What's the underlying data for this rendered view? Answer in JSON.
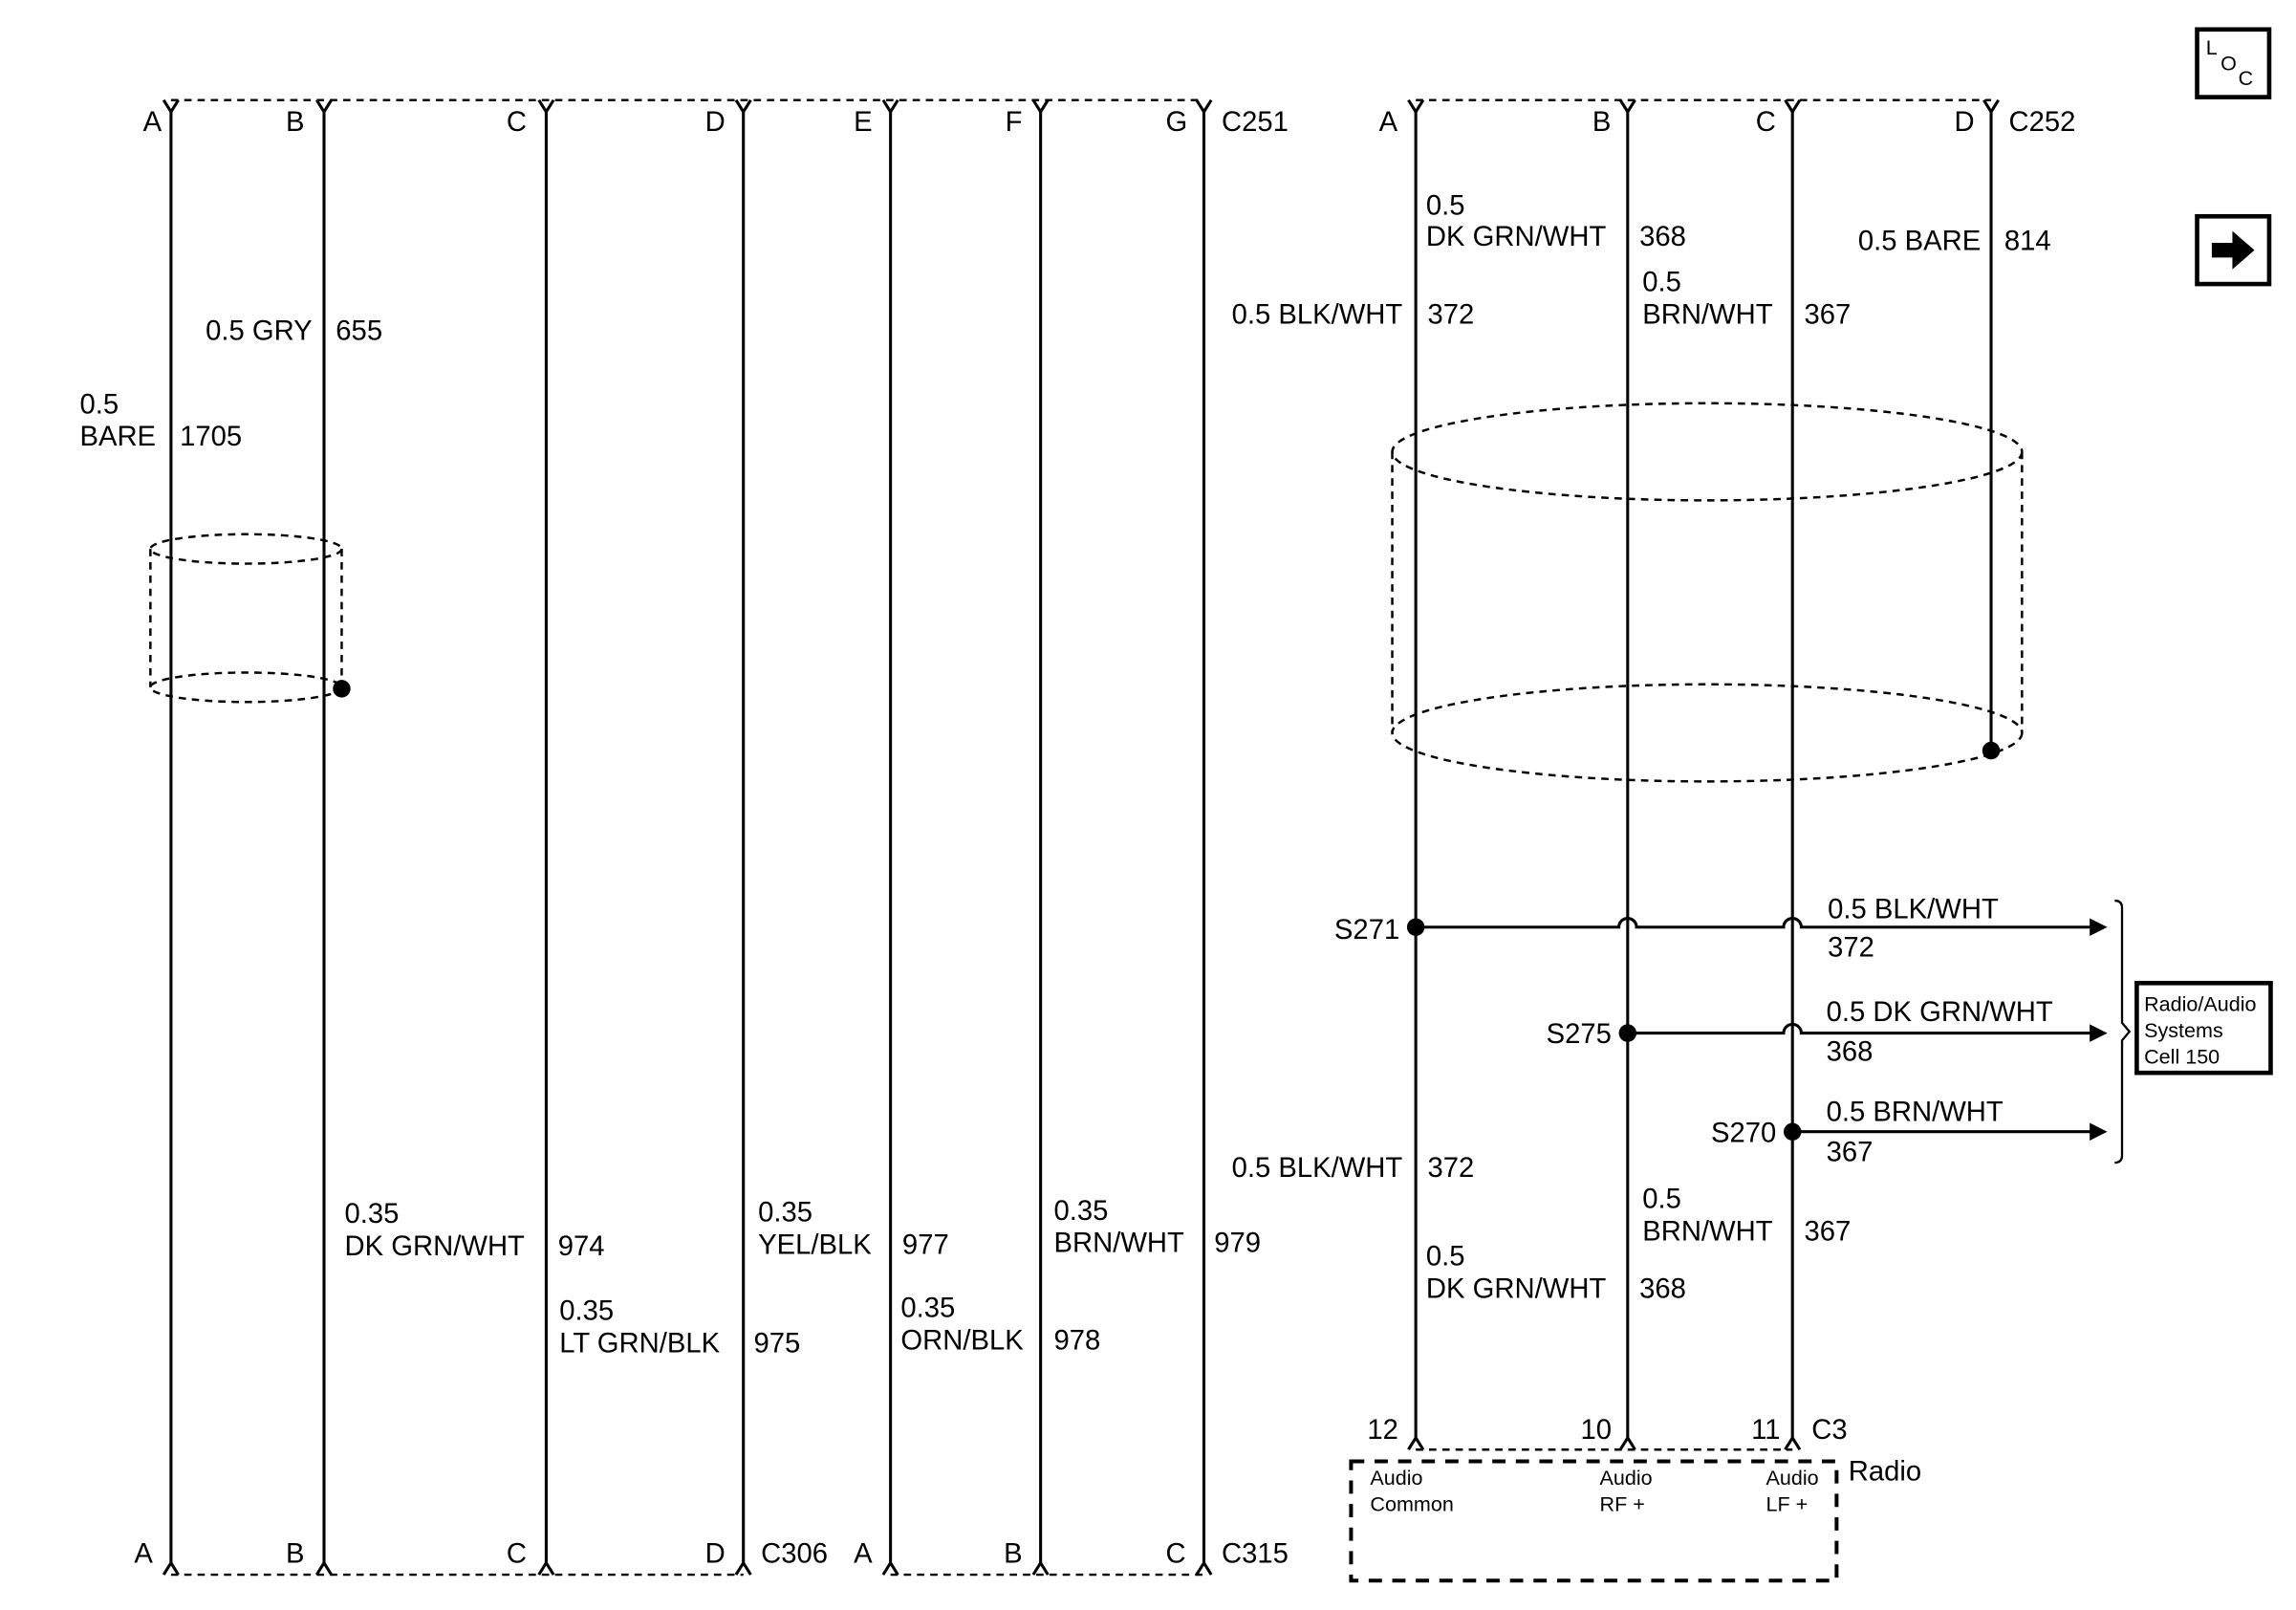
{
  "connectors": {
    "c251": {
      "name": "C251",
      "pins": [
        "A",
        "B",
        "C",
        "D",
        "E",
        "F",
        "G"
      ]
    },
    "c252": {
      "name": "C252",
      "pins": [
        "A",
        "B",
        "C",
        "D"
      ]
    },
    "c306": {
      "name": "C306",
      "pins": [
        "A",
        "B",
        "C",
        "D"
      ]
    },
    "c315": {
      "name": "C315",
      "pins": [
        "A",
        "B",
        "C"
      ]
    },
    "c3": {
      "name": "C3",
      "pins": [
        "12",
        "10",
        "11"
      ]
    }
  },
  "wires_upper_left": [
    {
      "size": "0.5",
      "color": "BARE",
      "circuit": "1705"
    },
    {
      "label": "0.5 GRY",
      "circuit": "655"
    }
  ],
  "wires_lower_left": [
    {
      "size": "0.35",
      "color": "DK GRN/WHT",
      "circuit": "974"
    },
    {
      "size": "0.35",
      "color": "LT GRN/BLK",
      "circuit": "975"
    },
    {
      "size": "0.35",
      "color": "YEL/BLK",
      "circuit": "977"
    },
    {
      "size": "0.35",
      "color": "ORN/BLK",
      "circuit": "978"
    },
    {
      "size": "0.35",
      "color": "BRN/WHT",
      "circuit": "979"
    }
  ],
  "wires_upper_right": [
    {
      "label": "0.5 BLK/WHT",
      "circuit": "372"
    },
    {
      "size": "0.5",
      "color": "DK GRN/WHT",
      "circuit": "368"
    },
    {
      "size": "0.5",
      "color": "BRN/WHT",
      "circuit": "367"
    },
    {
      "label": "0.5 BARE",
      "circuit": "814"
    }
  ],
  "wires_lower_right": [
    {
      "label": "0.5 BLK/WHT",
      "circuit": "372"
    },
    {
      "size": "0.5",
      "color": "BRN/WHT",
      "circuit": "367"
    },
    {
      "size": "0.5",
      "color": "DK GRN/WHT",
      "circuit": "368"
    }
  ],
  "splices": [
    {
      "id": "S271",
      "label": "0.5 BLK/WHT",
      "circuit": "372"
    },
    {
      "id": "S275",
      "label": "0.5 DK GRN/WHT",
      "circuit": "368"
    },
    {
      "id": "S270",
      "label": "0.5 BRN/WHT",
      "circuit": "367"
    }
  ],
  "reference_box": {
    "lines": [
      "Radio/Audio",
      "Systems",
      "Cell 150"
    ]
  },
  "radio": {
    "name": "Radio",
    "pins": [
      {
        "line1": "Audio",
        "line2": "Common"
      },
      {
        "line1": "Audio",
        "line2": "RF +"
      },
      {
        "line1": "Audio",
        "line2": "LF +"
      }
    ]
  },
  "icons": {
    "loc_letters": [
      "L",
      "O",
      "C"
    ],
    "nav": "arrow-right-icon"
  }
}
